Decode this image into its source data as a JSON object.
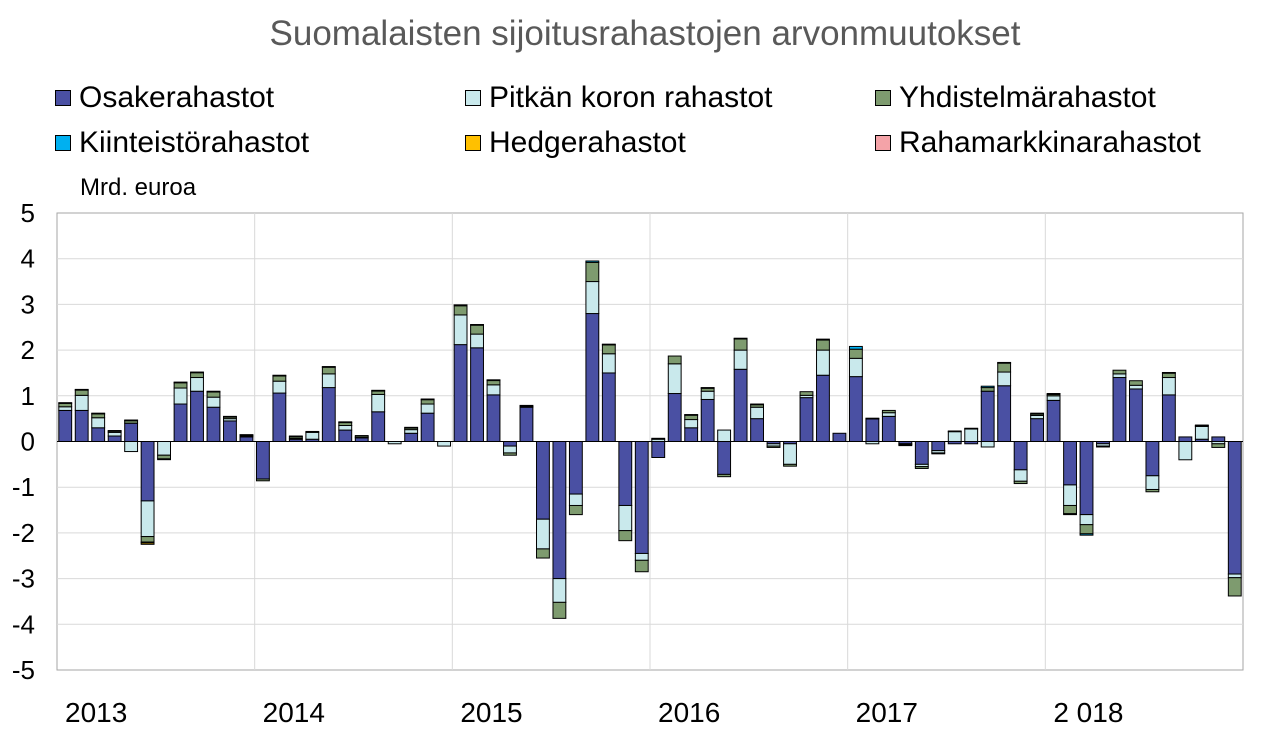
{
  "chart_data": {
    "type": "bar",
    "stacked": true,
    "title": "Suomalaisten sijoitusrahastojen arvonmuutokset",
    "ylabel": "Mrd. euroa",
    "ylim": [
      -5,
      5
    ],
    "yticks": [
      -5,
      -4,
      -3,
      -2,
      -1,
      0,
      1,
      2,
      3,
      4,
      5
    ],
    "grid": true,
    "legend_position": "top",
    "x_tick_labels": [
      "2013",
      "2014",
      "2015",
      "2016",
      "2017",
      "2 018"
    ],
    "x": [
      "2013-01",
      "2013-02",
      "2013-03",
      "2013-04",
      "2013-05",
      "2013-06",
      "2013-07",
      "2013-08",
      "2013-09",
      "2013-10",
      "2013-11",
      "2013-12",
      "2014-01",
      "2014-02",
      "2014-03",
      "2014-04",
      "2014-05",
      "2014-06",
      "2014-07",
      "2014-08",
      "2014-09",
      "2014-10",
      "2014-11",
      "2014-12",
      "2015-01",
      "2015-02",
      "2015-03",
      "2015-04",
      "2015-05",
      "2015-06",
      "2015-07",
      "2015-08",
      "2015-09",
      "2015-10",
      "2015-11",
      "2015-12",
      "2016-01",
      "2016-02",
      "2016-03",
      "2016-04",
      "2016-05",
      "2016-06",
      "2016-07",
      "2016-08",
      "2016-09",
      "2016-10",
      "2016-11",
      "2016-12",
      "2017-01",
      "2017-02",
      "2017-03",
      "2017-04",
      "2017-05",
      "2017-06",
      "2017-07",
      "2017-08",
      "2017-09",
      "2017-10",
      "2017-11",
      "2017-12",
      "2018-01",
      "2018-02",
      "2018-03",
      "2018-04",
      "2018-05",
      "2018-06",
      "2018-07",
      "2018-08",
      "2018-09",
      "2018-10",
      "2018-11",
      "2018-12"
    ],
    "series": [
      {
        "name": "Osakerahastot",
        "color": "#4a50a3",
        "values": [
          0.68,
          0.68,
          0.3,
          0.12,
          0.4,
          -1.3,
          0.0,
          0.82,
          1.1,
          0.75,
          0.45,
          0.1,
          -0.82,
          1.06,
          0.05,
          0.05,
          1.18,
          0.25,
          0.08,
          0.65,
          0.0,
          0.18,
          0.62,
          0.0,
          2.12,
          2.05,
          1.02,
          -0.1,
          0.75,
          -1.7,
          -3.0,
          -1.15,
          2.8,
          1.5,
          -1.4,
          -2.45,
          -0.35,
          1.05,
          0.3,
          0.92,
          -0.72,
          1.58,
          0.5,
          -0.05,
          -0.05,
          0.96,
          1.45,
          0.18,
          1.42,
          0.5,
          0.55,
          -0.05,
          -0.5,
          -0.2,
          -0.05,
          -0.05,
          1.1,
          1.22,
          -0.62,
          0.5,
          0.9,
          -0.95,
          -1.6,
          -0.05,
          1.4,
          1.15,
          -0.75,
          1.02,
          0.1,
          0.05,
          0.1,
          -2.9
        ]
      },
      {
        "name": "Pitkän koron rahastot",
        "color": "#c9e9ec",
        "values": [
          0.08,
          0.33,
          0.22,
          0.08,
          -0.22,
          -0.78,
          -0.3,
          0.35,
          0.3,
          0.22,
          0.05,
          0.02,
          0.0,
          0.26,
          0.02,
          0.15,
          0.3,
          0.1,
          0.02,
          0.38,
          -0.05,
          0.08,
          0.2,
          -0.1,
          0.65,
          0.3,
          0.22,
          -0.15,
          0.02,
          -0.65,
          -0.52,
          -0.25,
          0.7,
          0.42,
          -0.55,
          -0.15,
          0.05,
          0.65,
          0.18,
          0.18,
          0.25,
          0.42,
          0.25,
          -0.05,
          -0.45,
          0.05,
          0.55,
          0.0,
          0.4,
          -0.05,
          0.08,
          0.0,
          -0.05,
          -0.05,
          0.22,
          0.28,
          -0.12,
          0.3,
          -0.25,
          0.07,
          0.1,
          -0.45,
          -0.22,
          -0.05,
          0.08,
          0.08,
          -0.3,
          0.38,
          -0.4,
          0.28,
          -0.05,
          -0.08
        ]
      },
      {
        "name": "Yhdistelmärahastot",
        "color": "#7e9b6f",
        "values": [
          0.08,
          0.12,
          0.09,
          0.03,
          0.06,
          -0.12,
          -0.08,
          0.12,
          0.11,
          0.12,
          0.04,
          0.02,
          -0.04,
          0.12,
          0.04,
          0.02,
          0.15,
          0.07,
          0.03,
          0.08,
          0.0,
          0.04,
          0.1,
          0.0,
          0.2,
          0.2,
          0.1,
          -0.05,
          0.02,
          -0.2,
          -0.35,
          -0.2,
          0.42,
          0.2,
          -0.22,
          -0.25,
          0.02,
          0.17,
          0.1,
          0.07,
          -0.05,
          0.25,
          0.06,
          -0.03,
          -0.04,
          0.08,
          0.22,
          0.0,
          0.2,
          0.01,
          0.05,
          -0.02,
          -0.04,
          -0.02,
          0.01,
          0.01,
          0.08,
          0.2,
          -0.05,
          0.03,
          0.03,
          -0.18,
          -0.2,
          -0.02,
          0.08,
          0.1,
          -0.05,
          0.1,
          0.0,
          0.02,
          -0.08,
          -0.4
        ]
      },
      {
        "name": "Kiinteistörahastot",
        "color": "#00b0f0",
        "values": [
          0.01,
          0.01,
          0.01,
          0.01,
          0.01,
          -0.02,
          -0.01,
          0.01,
          0.01,
          0.01,
          0.01,
          0.01,
          0.0,
          0.01,
          0.01,
          0.0,
          0.01,
          0.01,
          0.0,
          0.01,
          0.0,
          0.01,
          0.01,
          0.0,
          0.02,
          0.01,
          0.01,
          0.0,
          0.0,
          0.0,
          0.0,
          0.0,
          0.03,
          0.01,
          0.0,
          0.0,
          0.0,
          0.0,
          0.01,
          0.01,
          0.0,
          0.01,
          0.01,
          0.0,
          0.0,
          0.0,
          0.02,
          0.0,
          0.06,
          0.0,
          0.0,
          -0.02,
          0.0,
          0.0,
          0.0,
          0.0,
          0.03,
          0.01,
          0.0,
          0.02,
          0.02,
          -0.02,
          -0.03,
          0.0,
          0.0,
          0.0,
          0.0,
          0.01,
          0.0,
          0.01,
          0.0,
          0.0
        ]
      },
      {
        "name": "Hedgerahastot",
        "color": "#ffc000",
        "values": [
          0.0,
          0.0,
          0.0,
          0.0,
          0.0,
          -0.03,
          0.0,
          0.0,
          0.0,
          0.0,
          0.0,
          0.0,
          0.0,
          0.0,
          0.0,
          0.0,
          0.0,
          0.0,
          0.0,
          0.0,
          0.0,
          0.0,
          0.0,
          0.0,
          0.0,
          0.0,
          0.0,
          0.0,
          0.0,
          0.0,
          0.0,
          0.0,
          0.0,
          0.0,
          0.0,
          0.0,
          0.0,
          0.0,
          0.0,
          0.0,
          0.0,
          0.0,
          0.0,
          0.0,
          0.0,
          0.0,
          0.0,
          0.0,
          0.0,
          0.0,
          0.0,
          0.0,
          0.0,
          0.0,
          0.0,
          0.0,
          0.0,
          0.0,
          0.0,
          0.0,
          0.0,
          0.0,
          0.0,
          0.0,
          0.0,
          0.0,
          0.0,
          0.0,
          0.0,
          0.0,
          0.0,
          0.0
        ]
      },
      {
        "name": "Rahamarkkinarahastot",
        "color": "#f4a3a8",
        "values": [
          0.0,
          0.0,
          0.0,
          0.0,
          0.0,
          0.0,
          0.0,
          0.0,
          0.0,
          0.0,
          0.0,
          0.0,
          0.0,
          0.0,
          0.0,
          0.0,
          0.0,
          0.0,
          0.0,
          0.0,
          0.0,
          0.0,
          0.0,
          0.0,
          0.0,
          0.0,
          0.0,
          0.0,
          0.0,
          0.0,
          0.0,
          0.0,
          0.0,
          0.0,
          0.0,
          0.0,
          0.0,
          0.0,
          0.0,
          0.0,
          0.0,
          0.0,
          0.0,
          0.0,
          0.0,
          0.0,
          0.0,
          0.0,
          0.0,
          0.0,
          0.0,
          0.0,
          0.0,
          0.0,
          0.0,
          0.0,
          0.0,
          0.0,
          0.0,
          0.0,
          0.0,
          0.0,
          0.0,
          0.0,
          0.0,
          0.0,
          0.0,
          0.0,
          0.0,
          0.0,
          0.0,
          0.0
        ]
      }
    ]
  }
}
